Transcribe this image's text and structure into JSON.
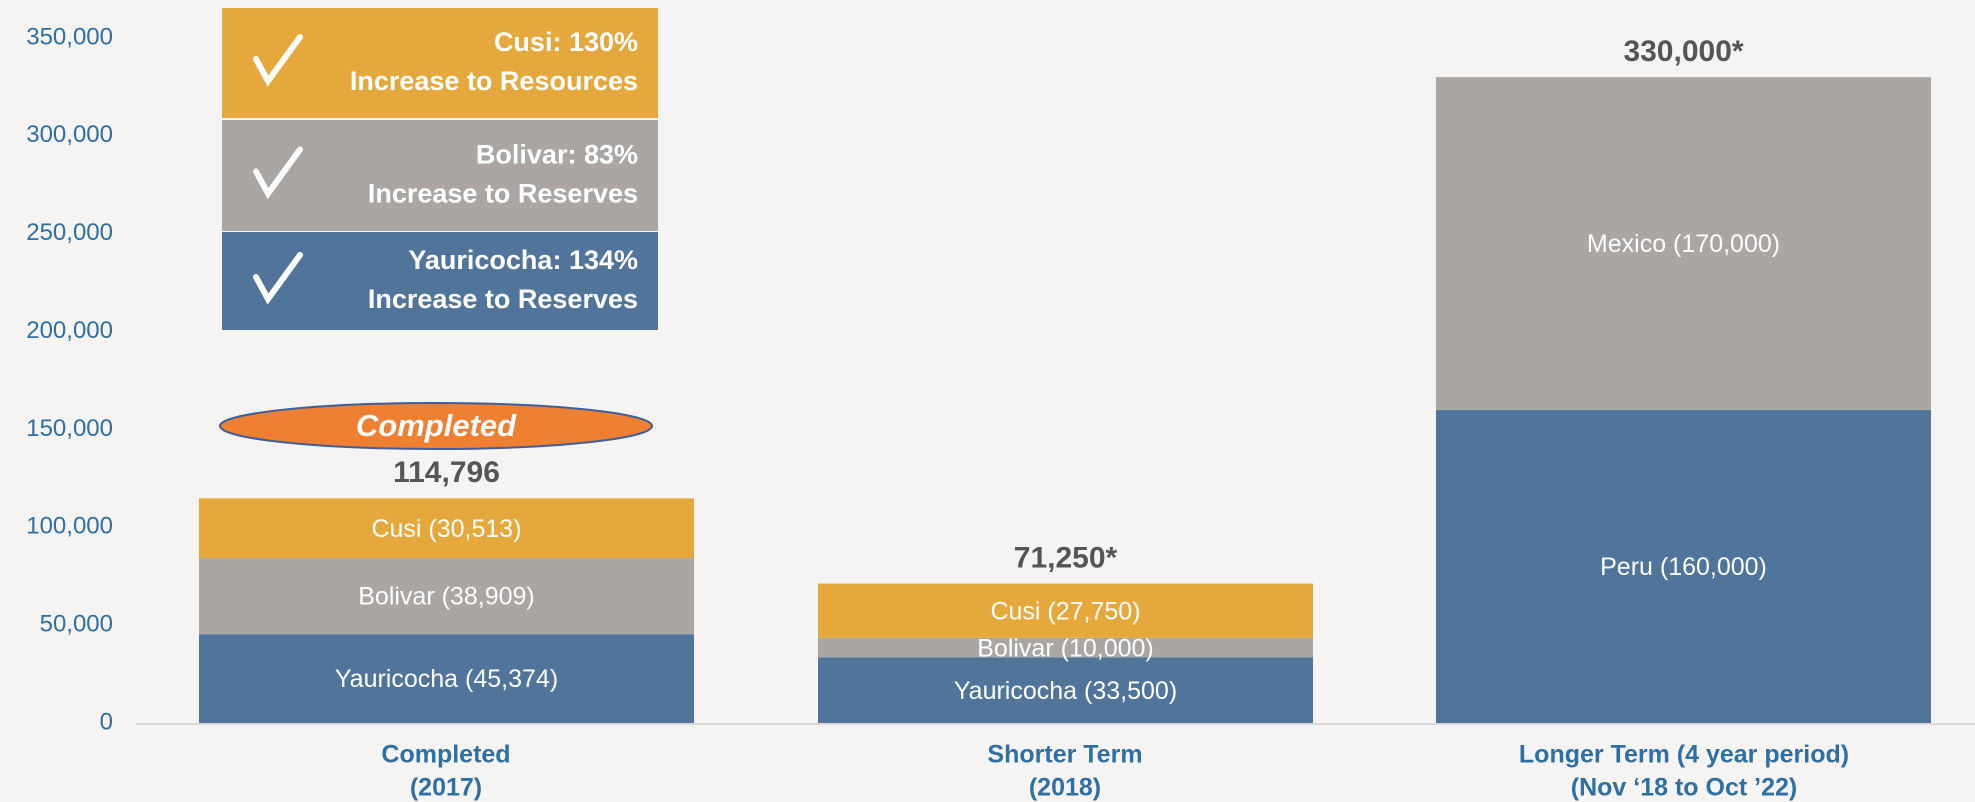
{
  "chart_data": {
    "type": "stacked_bar",
    "categories": [
      [
        "Completed",
        "(2017)"
      ],
      [
        "Shorter Term",
        "(2018)"
      ],
      [
        "Longer Term (4 year period)",
        "(Nov ‘18 to Oct ’22)"
      ]
    ],
    "series": [
      {
        "name": "Yauricocha",
        "color": "#50749a",
        "values": [
          45374,
          33500,
          null
        ],
        "value_labels": [
          "Yauricocha (45,374)",
          "Yauricocha (33,500)",
          null
        ]
      },
      {
        "name": "Bolivar",
        "color": "#aaa6a4",
        "values": [
          38909,
          10000,
          null
        ],
        "value_labels": [
          "Bolivar (38,909)",
          "Bolivar (10,000)",
          null
        ]
      },
      {
        "name": "Cusi",
        "color": "#e5a83c",
        "values": [
          30513,
          27750,
          null
        ],
        "value_labels": [
          "Cusi (30,513)",
          "Cusi (27,750)",
          null
        ]
      },
      {
        "name": "Peru",
        "color": "#50749a",
        "values": [
          null,
          null,
          160000
        ],
        "value_labels": [
          null,
          null,
          "Peru (160,000)"
        ]
      },
      {
        "name": "Mexico",
        "color": "#aaa6a4",
        "values": [
          null,
          null,
          170000
        ],
        "value_labels": [
          null,
          null,
          "Mexico (170,000)"
        ]
      }
    ],
    "totals": [
      114796,
      71250,
      330000
    ],
    "total_labels": [
      "114,796",
      "71,250*",
      "330,000*"
    ],
    "ylim": [
      0,
      350000
    ],
    "yticks": [
      0,
      {
        "value": 50000,
        "label": "50,000"
      },
      {
        "value": 100000,
        "label": "100,000"
      },
      {
        "value": 150000,
        "label": "150,000"
      },
      {
        "value": 200000,
        "label": "200,000"
      },
      {
        "value": 250000,
        "label": "250,000"
      },
      {
        "value": 300000,
        "label": "300,000"
      },
      {
        "value": 350000,
        "label": "350,000"
      }
    ],
    "annotations": [
      {
        "title": "Cusi: 130%",
        "text": "Increase to Resources",
        "color": "#e5a83c"
      },
      {
        "title": "Bolivar: 83%",
        "text": "Increase to Reserves",
        "color": "#aaa6a4"
      },
      {
        "title": "Yauricocha: 134%",
        "text": "Increase to Reserves",
        "color": "#50749a"
      }
    ],
    "badge": "Completed"
  }
}
